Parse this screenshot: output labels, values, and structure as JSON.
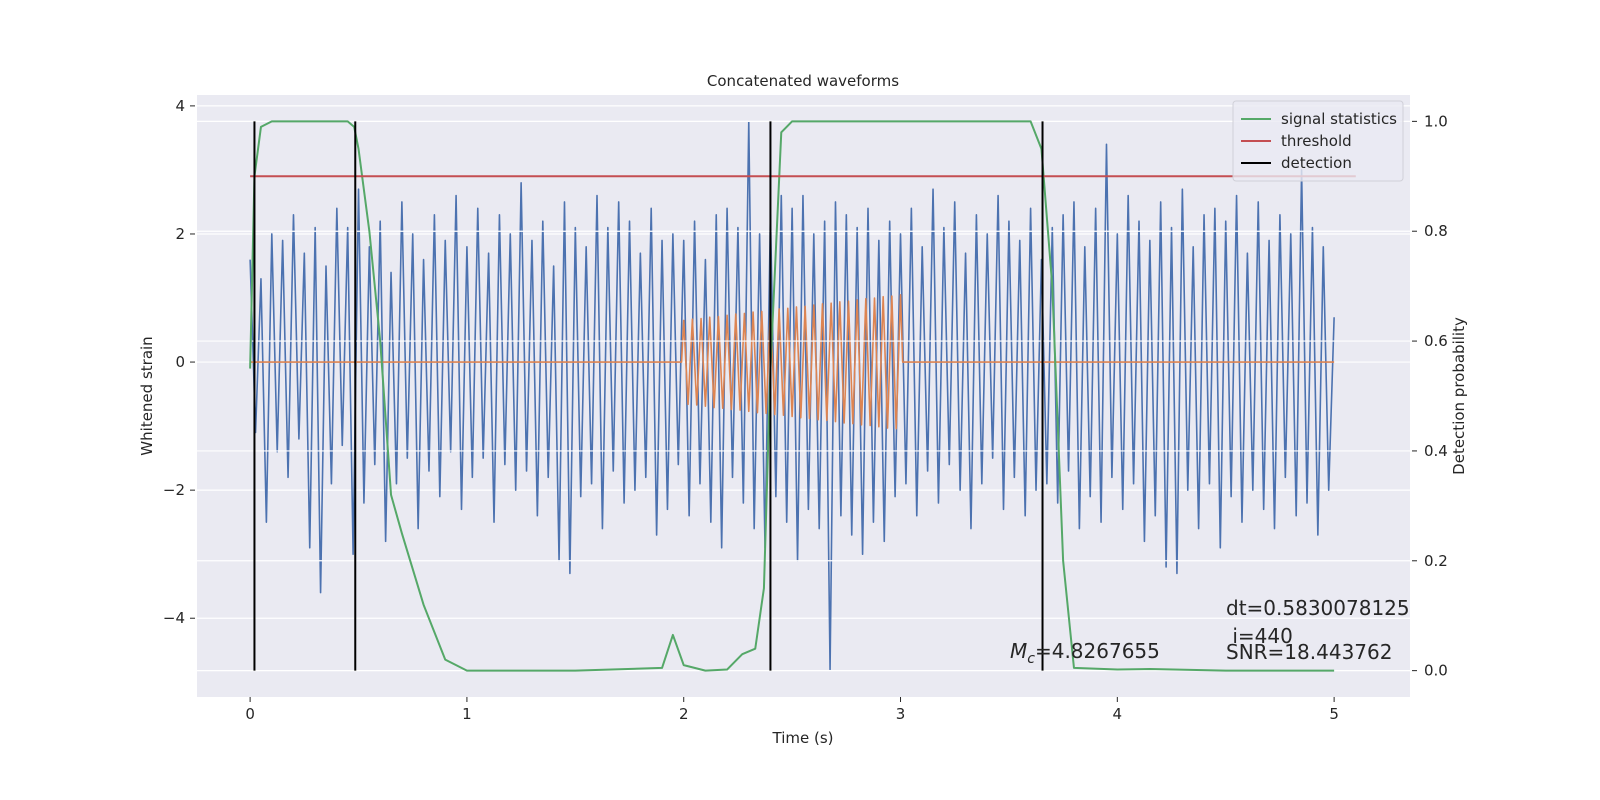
{
  "chart_data": {
    "type": "line",
    "title": "Concatenated waveforms",
    "xlabel": "Time (s)",
    "ylabel": "Whitened strain",
    "y2label": "Detection probability",
    "xlim": [
      -0.245,
      5.35
    ],
    "ylim": [
      -5.23,
      4.17
    ],
    "y2lim": [
      -0.048,
      1.048
    ],
    "xticks": [
      0,
      1,
      2,
      3,
      4,
      5
    ],
    "yticks": [
      {
        "value": -4,
        "label": "−4"
      },
      {
        "value": -2,
        "label": "−2"
      },
      0,
      2,
      4
    ],
    "y2ticks": [
      {
        "value": 0,
        "label": "0.0"
      },
      0.2,
      0.4,
      0.6,
      0.8,
      {
        "value": 1,
        "label": "1.0"
      }
    ],
    "grid": true,
    "legend": "upper right",
    "series": [
      {
        "color": "#4c72b0",
        "x": [
          0,
          0.025,
          0.05,
          0.075,
          0.1,
          0.125,
          0.15,
          0.175,
          0.2,
          0.225,
          0.25,
          0.275,
          0.3,
          0.325,
          0.35,
          0.375,
          0.4,
          0.425,
          0.45,
          0.475,
          0.5,
          0.525,
          0.55,
          0.575,
          0.6,
          0.625,
          0.65,
          0.675,
          0.7,
          0.725,
          0.75,
          0.775,
          0.8,
          0.825,
          0.85,
          0.875,
          0.9,
          0.925,
          0.95,
          0.975,
          1,
          1.025,
          1.05,
          1.075,
          1.1,
          1.125,
          1.15,
          1.175,
          1.2,
          1.225,
          1.25,
          1.275,
          1.3,
          1.325,
          1.35,
          1.375,
          1.4,
          1.425,
          1.45,
          1.475,
          1.5,
          1.525,
          1.55,
          1.575,
          1.6,
          1.625,
          1.65,
          1.675,
          1.7,
          1.725,
          1.75,
          1.775,
          1.8,
          1.825,
          1.85,
          1.875,
          1.9,
          1.925,
          1.95,
          1.975,
          2,
          2.025,
          2.05,
          2.075,
          2.1,
          2.125,
          2.15,
          2.175,
          2.2,
          2.225,
          2.25,
          2.275,
          2.3,
          2.325,
          2.35,
          2.375,
          2.4,
          2.425,
          2.45,
          2.475,
          2.5,
          2.525,
          2.55,
          2.575,
          2.6,
          2.625,
          2.65,
          2.675,
          2.7,
          2.725,
          2.75,
          2.775,
          2.8,
          2.825,
          2.85,
          2.875,
          2.9,
          2.925,
          2.95,
          2.975,
          3,
          3.025,
          3.05,
          3.075,
          3.1,
          3.125,
          3.15,
          3.175,
          3.2,
          3.225,
          3.25,
          3.275,
          3.3,
          3.325,
          3.35,
          3.375,
          3.4,
          3.425,
          3.45,
          3.475,
          3.5,
          3.525,
          3.55,
          3.575,
          3.6,
          3.625,
          3.65,
          3.675,
          3.7,
          3.725,
          3.75,
          3.775,
          3.8,
          3.825,
          3.85,
          3.875,
          3.9,
          3.925,
          3.95,
          3.975,
          4,
          4.025,
          4.05,
          4.075,
          4.1,
          4.125,
          4.15,
          4.175,
          4.2,
          4.225,
          4.25,
          4.275,
          4.3,
          4.325,
          4.35,
          4.375,
          4.4,
          4.425,
          4.45,
          4.475,
          4.5,
          4.525,
          4.55,
          4.575,
          4.6,
          4.625,
          4.65,
          4.675,
          4.7,
          4.725,
          4.75,
          4.775,
          4.8,
          4.825,
          4.85,
          4.875,
          4.9,
          4.925,
          4.95,
          4.975,
          5
        ],
        "values": [
          1.6,
          -1.1,
          1.3,
          -2.5,
          2.0,
          -1.4,
          1.9,
          -1.8,
          2.3,
          -1.2,
          1.7,
          -2.9,
          2.1,
          -3.6,
          1.5,
          -1.9,
          2.4,
          -1.3,
          2.1,
          -3.0,
          2.7,
          -2.2,
          1.8,
          -1.6,
          2.2,
          -2.8,
          1.4,
          -1.9,
          2.5,
          -1.5,
          2.0,
          -2.6,
          1.6,
          -1.7,
          2.3,
          -2.1,
          1.9,
          -1.4,
          2.6,
          -2.3,
          1.8,
          -1.8,
          2.4,
          -1.5,
          1.7,
          -2.5,
          2.3,
          -1.6,
          2.0,
          -2.0,
          2.8,
          -1.7,
          1.9,
          -2.4,
          2.2,
          -1.8,
          1.5,
          -3.1,
          2.5,
          -3.3,
          2.1,
          -2.1,
          1.8,
          -1.9,
          2.6,
          -2.6,
          2.1,
          -1.7,
          2.5,
          -2.2,
          2.2,
          -2.0,
          1.7,
          -1.8,
          2.4,
          -2.7,
          1.9,
          -2.3,
          2.0,
          -1.6,
          1.9,
          -2.4,
          2.2,
          -1.9,
          1.6,
          -2.5,
          2.3,
          -2.9,
          2.4,
          -1.8,
          2.1,
          -2.2,
          3.75,
          -2.6,
          2.0,
          -2.9,
          2.3,
          -2.1,
          2.6,
          -2.5,
          2.4,
          -3.1,
          2.6,
          -2.3,
          2.0,
          -2.6,
          2.2,
          -4.8,
          2.5,
          -2.4,
          2.3,
          -2.7,
          2.1,
          -3.0,
          2.4,
          -2.5,
          1.9,
          -2.8,
          2.2,
          -2.1,
          2.0,
          -1.9,
          2.4,
          -2.4,
          1.8,
          -1.7,
          2.7,
          -2.2,
          2.1,
          -1.6,
          2.5,
          -2.0,
          1.7,
          -2.6,
          2.3,
          -1.9,
          2.0,
          -1.5,
          2.6,
          -2.3,
          2.2,
          -1.8,
          1.9,
          -2.4,
          2.4,
          -2.0,
          1.6,
          -1.9,
          2.1,
          -2.2,
          2.3,
          -1.7,
          2.5,
          -2.6,
          1.8,
          -2.1,
          2.4,
          -2.5,
          3.4,
          -1.8,
          2.0,
          -2.3,
          2.6,
          -1.9,
          2.2,
          -2.8,
          1.9,
          -2.4,
          2.5,
          -3.2,
          2.1,
          -3.3,
          2.7,
          -2.0,
          1.8,
          -2.6,
          2.3,
          -1.9,
          2.4,
          -2.9,
          2.2,
          -2.1,
          2.6,
          -2.5,
          1.7,
          -2.0,
          2.5,
          -2.3,
          1.9,
          -2.6,
          2.3,
          -1.8,
          2.0,
          -2.4,
          3.0,
          -2.2,
          2.1,
          -2.7,
          1.8,
          -2.0,
          0.7
        ]
      },
      {
        "color": "#dd8452",
        "x": [
          0,
          1.99,
          2.0,
          2.02,
          2.04,
          2.06,
          2.08,
          2.1,
          2.12,
          2.14,
          2.16,
          2.18,
          2.2,
          2.22,
          2.24,
          2.26,
          2.28,
          2.3,
          2.32,
          2.34,
          2.36,
          2.38,
          2.4,
          2.42,
          2.44,
          2.46,
          2.48,
          2.5,
          2.52,
          2.54,
          2.56,
          2.58,
          2.6,
          2.62,
          2.64,
          2.66,
          2.68,
          2.7,
          2.72,
          2.74,
          2.76,
          2.78,
          2.8,
          2.82,
          2.84,
          2.86,
          2.88,
          2.9,
          2.92,
          2.94,
          2.96,
          2.98,
          3.0,
          3.01,
          5.0
        ],
        "values": [
          0,
          0,
          0.65,
          -0.66,
          0.67,
          -0.67,
          0.68,
          -0.69,
          0.7,
          -0.71,
          0.71,
          -0.72,
          0.73,
          -0.74,
          0.75,
          -0.75,
          0.76,
          -0.77,
          0.78,
          -0.79,
          0.79,
          -0.8,
          0.81,
          -0.82,
          0.83,
          -0.83,
          0.84,
          -0.85,
          0.86,
          -0.87,
          0.87,
          -0.88,
          0.89,
          -0.9,
          0.91,
          -0.91,
          0.92,
          -0.93,
          0.94,
          -0.95,
          0.95,
          -0.96,
          0.97,
          -0.98,
          0.99,
          -0.99,
          1.0,
          -1.01,
          1.02,
          -1.03,
          1.03,
          -1.04,
          1.05,
          0,
          0
        ]
      },
      {
        "name": "signal statistics",
        "color": "#55a868",
        "axis": "y2",
        "x": [
          0,
          0.02,
          0.05,
          0.1,
          0.45,
          0.48,
          0.5,
          0.55,
          0.6,
          0.65,
          0.7,
          0.8,
          0.9,
          1.0,
          1.5,
          1.9,
          1.95,
          2.0,
          2.1,
          2.2,
          2.27,
          2.33,
          2.37,
          2.4,
          2.45,
          2.5,
          3.6,
          3.65,
          3.7,
          3.75,
          3.8,
          4.0,
          4.15,
          4.5,
          5.0
        ],
        "values": [
          0.55,
          0.9,
          0.99,
          1.0,
          1.0,
          0.99,
          0.95,
          0.8,
          0.6,
          0.32,
          0.25,
          0.12,
          0.02,
          0.0,
          0.0,
          0.005,
          0.065,
          0.01,
          0.0,
          0.002,
          0.03,
          0.04,
          0.15,
          0.55,
          0.98,
          1.0,
          1.0,
          0.95,
          0.7,
          0.2,
          0.005,
          0.002,
          0.003,
          0.0,
          0.0
        ]
      },
      {
        "name": "threshold",
        "color": "#c44e52",
        "axis": "y2",
        "x": [
          0,
          5.1
        ],
        "values": [
          0.9,
          0.9
        ]
      },
      {
        "name": "detection",
        "color": "#000000",
        "axis": "y2",
        "style": "vlines",
        "x": [
          0.02,
          0.485,
          2.4,
          3.655
        ],
        "ymin": 0,
        "ymax": 1
      }
    ],
    "annotations": [
      {
        "symbol": "M",
        "subscript": "c",
        "text": "=4.8267655"
      },
      {
        "text": "dt=0.5830078125"
      },
      {
        "text": " i=440"
      },
      {
        "text": "SNR=18.443762"
      }
    ]
  }
}
